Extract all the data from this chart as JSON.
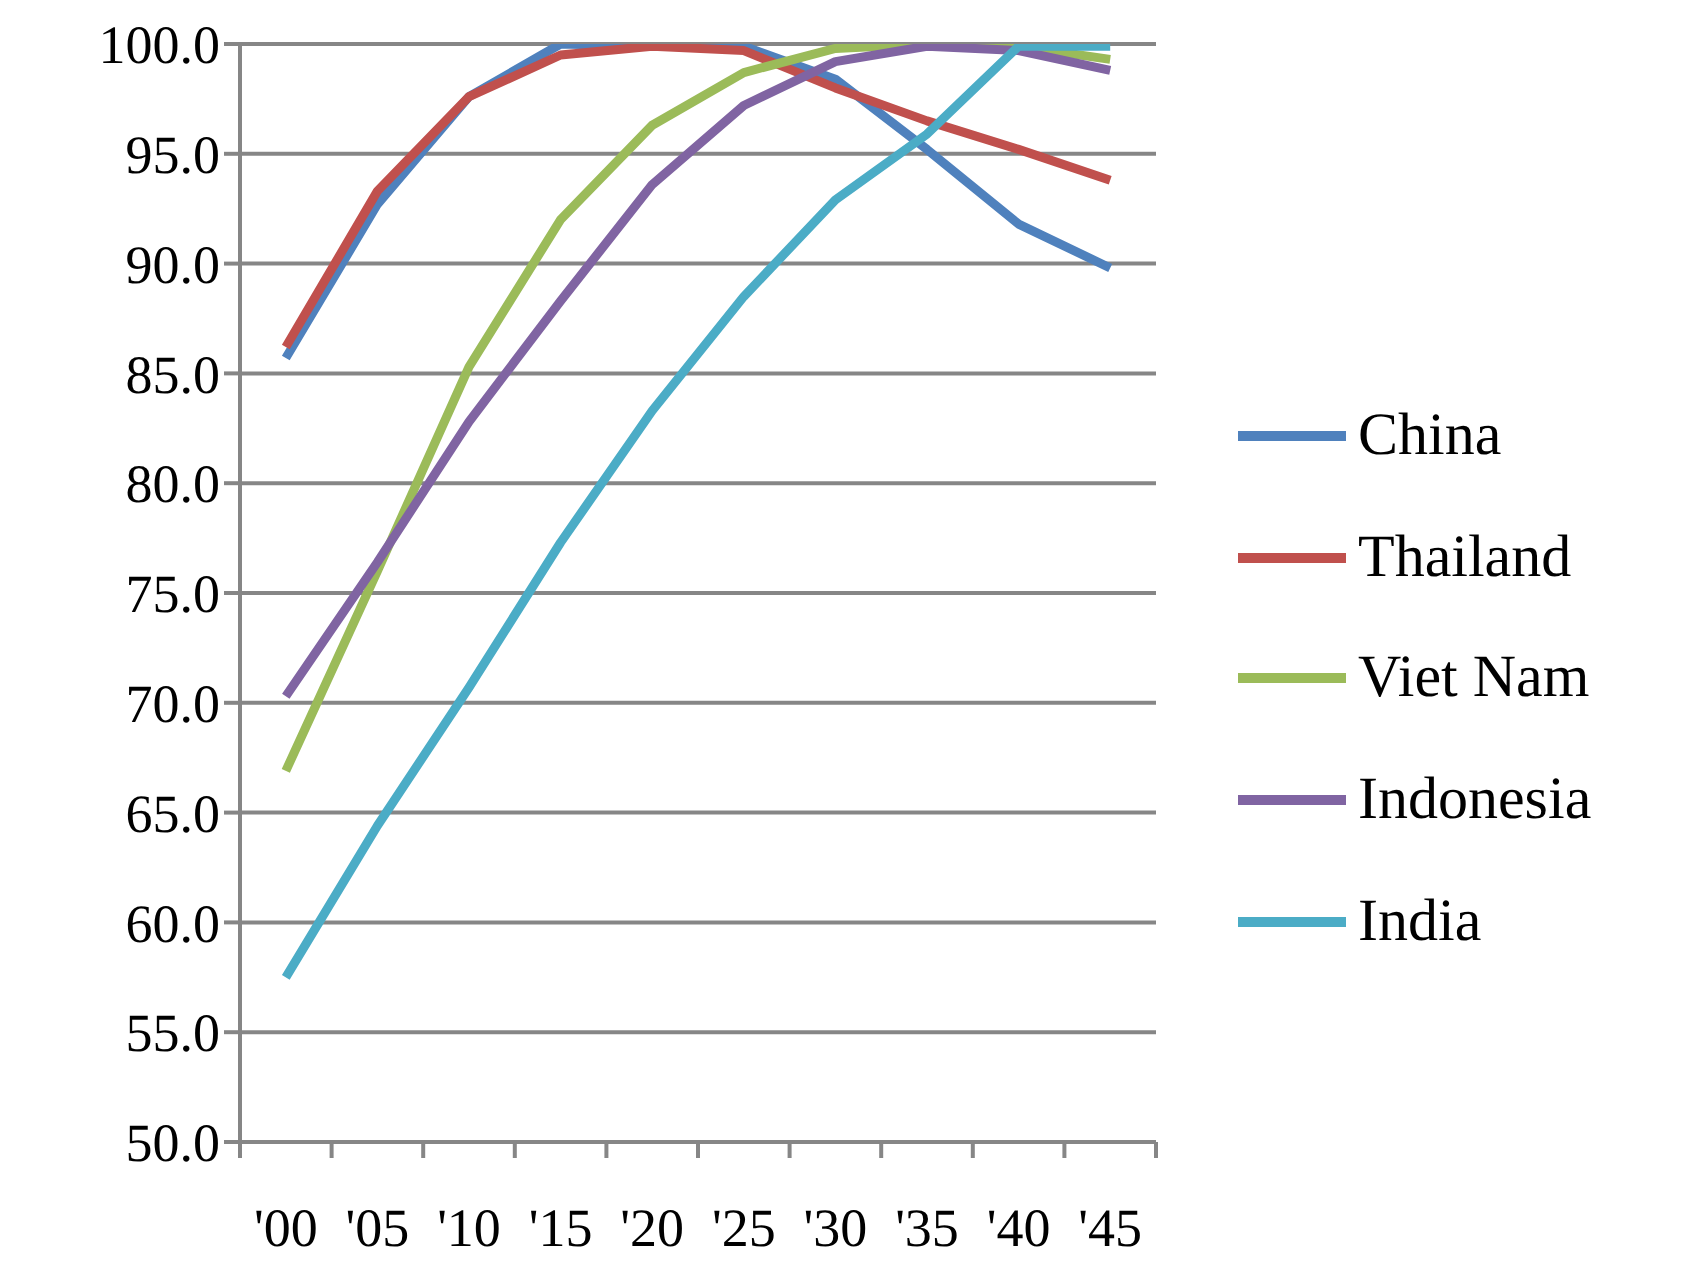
{
  "chart_data": {
    "type": "line",
    "categories": [
      "'00",
      "'05",
      "'10",
      "'15",
      "'20",
      "'25",
      "'30",
      "'35",
      "'40",
      "'45"
    ],
    "series": [
      {
        "name": "China",
        "color": "#4f81bd",
        "values": [
          85.7,
          92.7,
          97.6,
          100,
          99.9,
          99.9,
          98.4,
          95.2,
          91.8,
          89.8
        ]
      },
      {
        "name": "Thailand",
        "color": "#c0504d",
        "values": [
          86.2,
          93.3,
          97.6,
          99.5,
          99.9,
          99.7,
          98.0,
          96.5,
          95.2,
          93.8
        ]
      },
      {
        "name": "Viet Nam",
        "color": "#9bbb59",
        "values": [
          66.9,
          76.0,
          85.3,
          92.0,
          96.3,
          98.7,
          99.8,
          100,
          99.9,
          99.3
        ]
      },
      {
        "name": "Indonesia",
        "color": "#8064a2",
        "values": [
          70.3,
          76.4,
          82.8,
          88.3,
          93.6,
          97.2,
          99.2,
          99.9,
          99.7,
          98.8
        ]
      },
      {
        "name": "India",
        "color": "#4bacc6",
        "values": [
          57.5,
          64.4,
          70.7,
          77.3,
          83.3,
          88.5,
          92.9,
          95.9,
          99.9,
          99.9
        ]
      }
    ],
    "ylim": [
      50,
      100
    ],
    "yticks": [
      {
        "value": 50,
        "label": "50.0"
      },
      {
        "value": 55,
        "label": "55.0"
      },
      {
        "value": 60,
        "label": "60.0"
      },
      {
        "value": 65,
        "label": "65.0"
      },
      {
        "value": 70,
        "label": "70.0"
      },
      {
        "value": 75,
        "label": "75.0"
      },
      {
        "value": 80,
        "label": "80.0"
      },
      {
        "value": 85,
        "label": "85.0"
      },
      {
        "value": 90,
        "label": "90.0"
      },
      {
        "value": 95,
        "label": "95.0"
      },
      {
        "value": 100,
        "label": "100.0"
      }
    ],
    "grid": "y",
    "legend": "right",
    "marker": "none",
    "line_style": "solid"
  }
}
